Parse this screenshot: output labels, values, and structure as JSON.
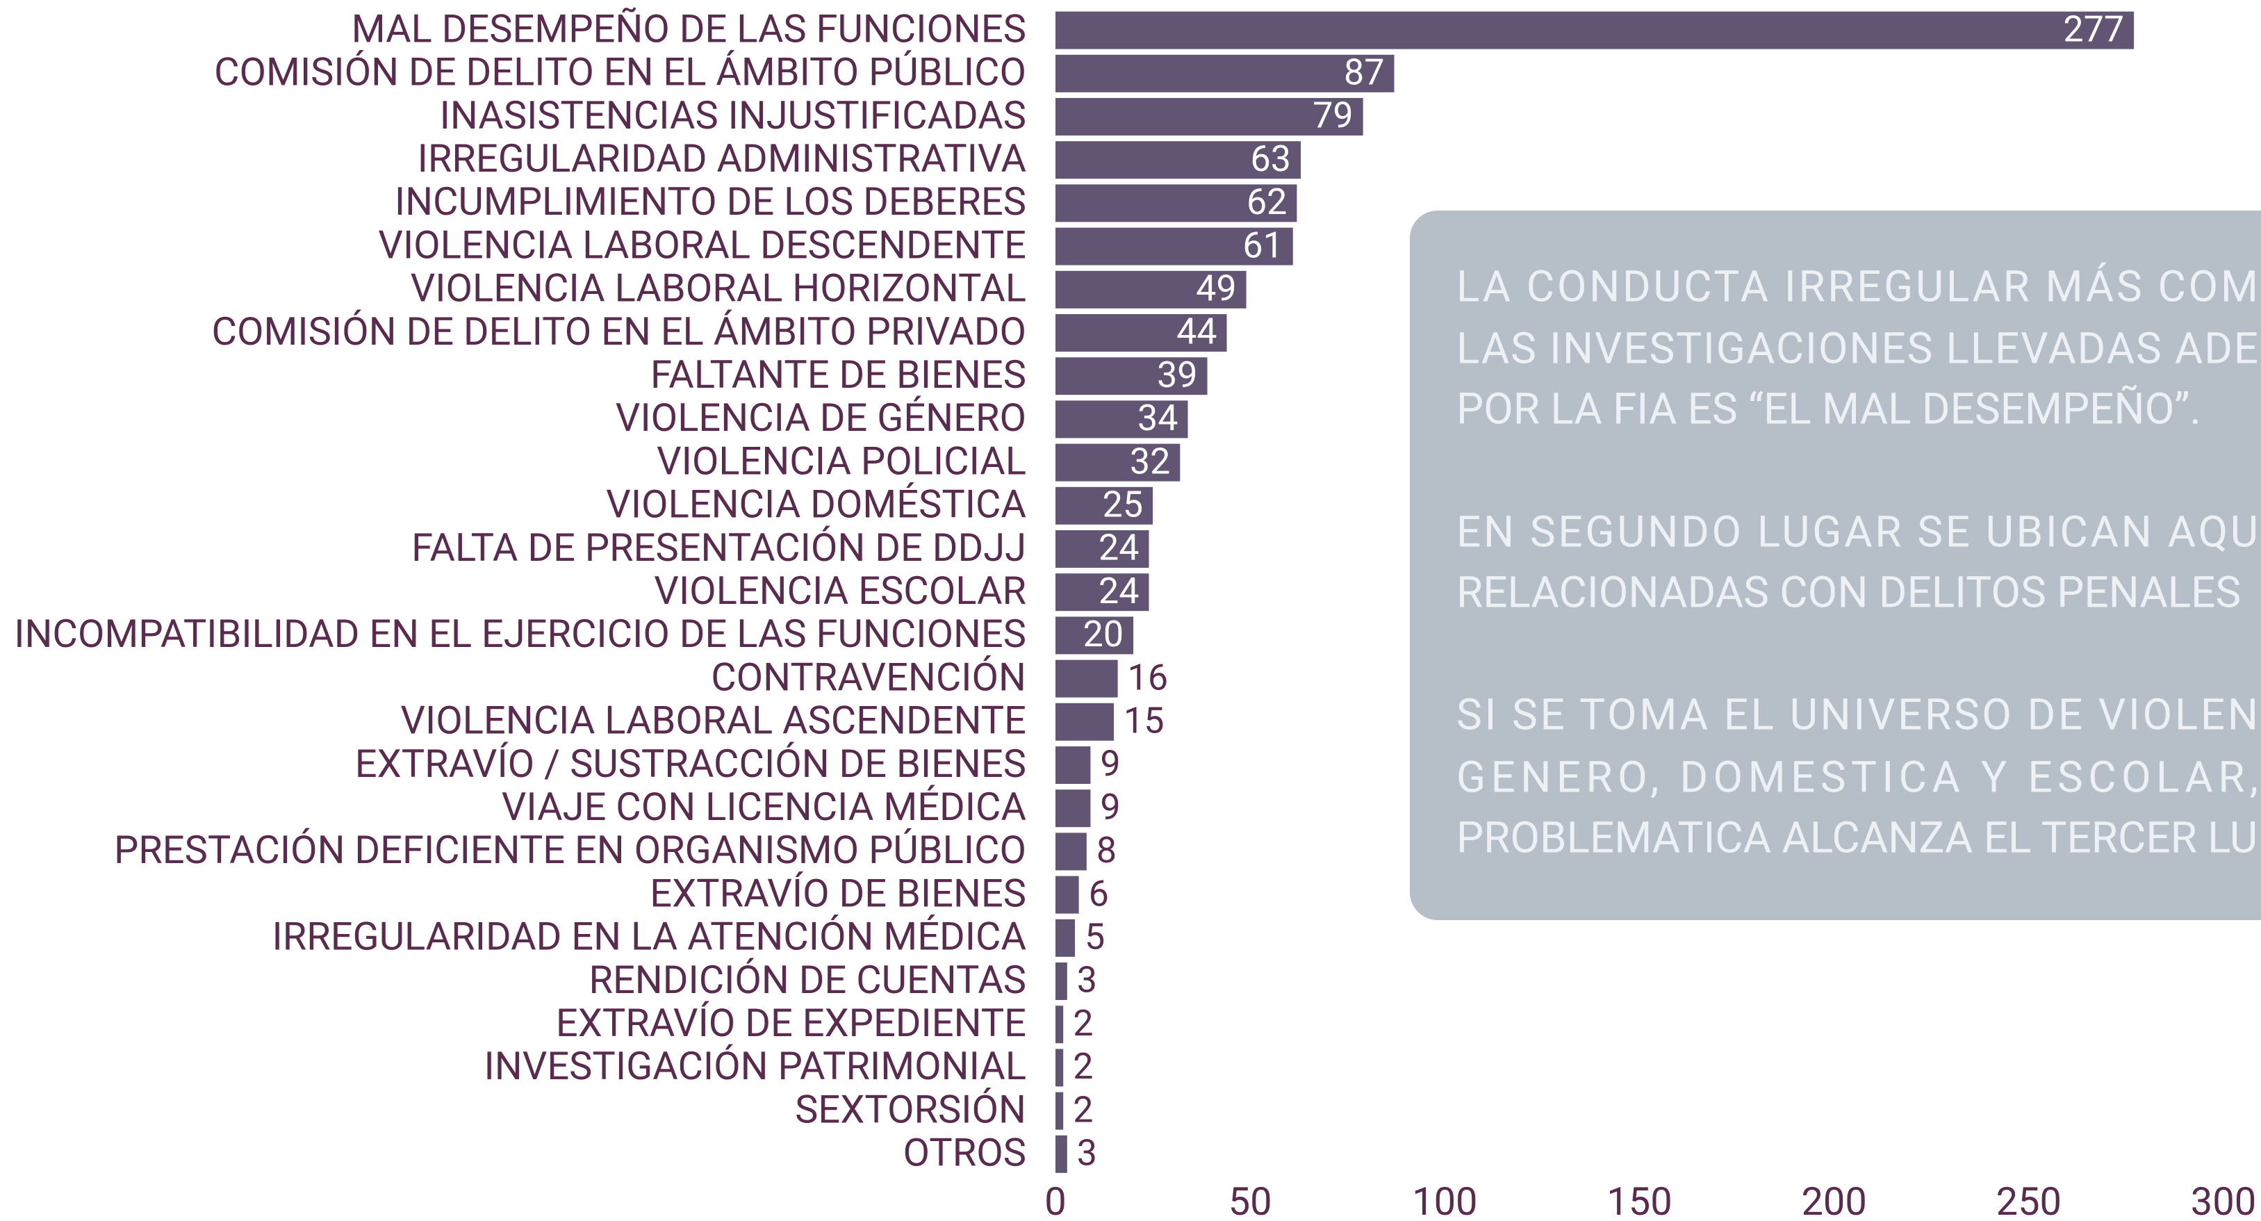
{
  "chart_data": {
    "type": "bar",
    "orientation": "horizontal",
    "categories": [
      "MAL DESEMPEÑO DE LAS FUNCIONES",
      "COMISIÓN DE DELITO EN EL ÁMBITO PÚBLICO",
      "INASISTENCIAS INJUSTIFICADAS",
      "IRREGULARIDAD ADMINISTRATIVA",
      "INCUMPLIMIENTO DE LOS DEBERES",
      "VIOLENCIA LABORAL DESCENDENTE",
      "VIOLENCIA LABORAL HORIZONTAL",
      "COMISIÓN DE DELITO EN EL ÁMBITO PRIVADO",
      "FALTANTE DE BIENES",
      "VIOLENCIA DE GÉNERO",
      "VIOLENCIA POLICIAL",
      "VIOLENCIA DOMÉSTICA",
      "FALTA DE PRESENTACIÓN DE DDJJ",
      "VIOLENCIA ESCOLAR",
      "INCOMPATIBILIDAD EN EL EJERCICIO DE LAS FUNCIONES",
      "CONTRAVENCIÓN",
      "VIOLENCIA LABORAL ASCENDENTE",
      "EXTRAVÍO / SUSTRACCIÓN DE BIENES",
      "VIAJE CON LICENCIA MÉDICA",
      "PRESTACIÓN DEFICIENTE EN ORGANISMO PÚBLICO",
      "EXTRAVÍO DE BIENES",
      "IRREGULARIDAD EN LA ATENCIÓN MÉDICA",
      "RENDICIÓN DE CUENTAS",
      "EXTRAVÍO DE EXPEDIENTE",
      "INVESTIGACIÓN PATRIMONIAL",
      "SEXTORSIÓN",
      "OTROS"
    ],
    "values": [
      277,
      87,
      79,
      63,
      62,
      61,
      49,
      44,
      39,
      34,
      32,
      25,
      24,
      24,
      20,
      16,
      15,
      9,
      9,
      8,
      6,
      5,
      3,
      2,
      2,
      2,
      3
    ],
    "color": "#625473",
    "xlim": [
      0,
      300
    ],
    "xticks": [
      0,
      50,
      100,
      150,
      200,
      250,
      300
    ],
    "annotation": [
      [
        "LA CONDUCTA IRREGULAR MÁS COM",
        "LAS INVESTIGACIONES LLEVADAS ADE",
        "POR LA FIA ES “EL MAL DESEMPEÑO”."
      ],
      [
        "EN SEGUNDO LUGAR SE UBICAN AQU",
        "RELACIONADAS CON DELITOS PENALES"
      ],
      [
        "SI SE TOMA EL UNIVERSO DE VIOLEN",
        "GENERO, DOMESTICA Y ESCOLAR,",
        "PROBLEMATICA ALCANZA EL TERCER LU"
      ]
    ]
  }
}
